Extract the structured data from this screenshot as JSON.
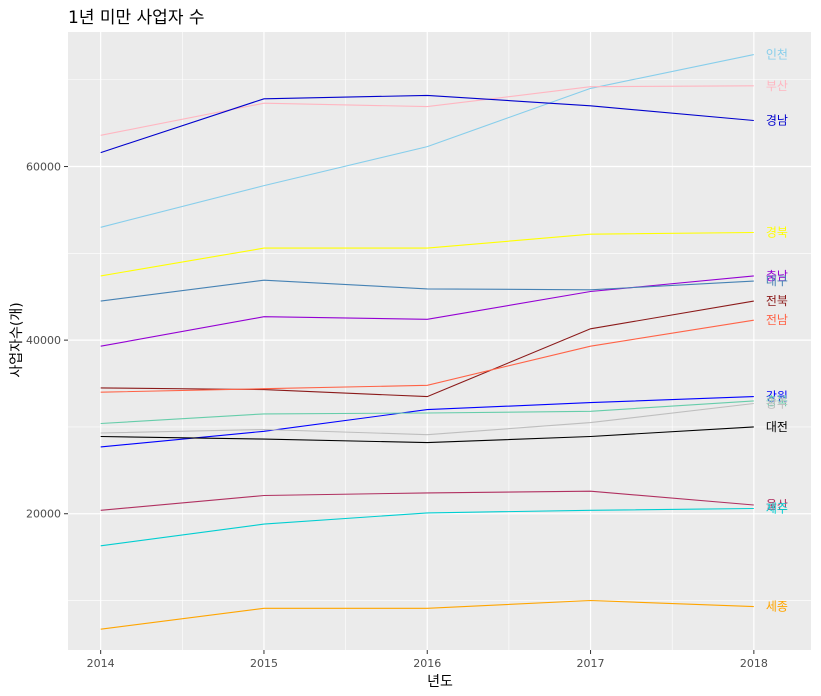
{
  "chart_data": {
    "type": "line",
    "title": "1년 미만 사업자 수",
    "xlabel": "년도",
    "ylabel": "사업자수(개)",
    "x": [
      2014,
      2015,
      2016,
      2017,
      2018
    ],
    "x_ticks": [
      "2014",
      "2015",
      "2016",
      "2017",
      "2018"
    ],
    "y_ticks": [
      "20000",
      "40000",
      "60000"
    ],
    "y_tick_values": [
      20000,
      40000,
      60000
    ],
    "xlim": [
      2013.8,
      2018.35
    ],
    "ylim": [
      4300,
      75500
    ],
    "grid": true,
    "legend": "labels at line ends",
    "series": [
      {
        "name": "인천",
        "color": "#87CEEB",
        "values": [
          53000,
          57800,
          62300,
          69000,
          72900
        ]
      },
      {
        "name": "부산",
        "color": "#FFB6C1",
        "values": [
          63600,
          67300,
          66900,
          69200,
          69300
        ]
      },
      {
        "name": "경남",
        "color": "#0000CD",
        "values": [
          61600,
          67800,
          68200,
          67000,
          65300
        ]
      },
      {
        "name": "경북",
        "color": "#FFFF00",
        "values": [
          47400,
          50600,
          50600,
          52200,
          52400
        ]
      },
      {
        "name": "충남",
        "color": "#9400D3",
        "values": [
          39300,
          42700,
          42400,
          45600,
          47400
        ]
      },
      {
        "name": "대구",
        "color": "#4682B4",
        "values": [
          44500,
          46900,
          45900,
          45800,
          46800
        ]
      },
      {
        "name": "전북",
        "color": "#8B1A1A",
        "values": [
          34500,
          34300,
          33500,
          41300,
          44500
        ]
      },
      {
        "name": "전남",
        "color": "#FF6347",
        "values": [
          34000,
          34400,
          34800,
          39300,
          42300
        ]
      },
      {
        "name": "강원",
        "color": "#0000FF",
        "values": [
          27700,
          29500,
          32000,
          32800,
          33500
        ]
      },
      {
        "name": "충북",
        "color": "#66CDAA",
        "values": [
          30400,
          31500,
          31600,
          31800,
          33000
        ]
      },
      {
        "name": "광주",
        "color": "#BEBEBE",
        "values": [
          29300,
          29700,
          29100,
          30500,
          32700
        ]
      },
      {
        "name": "대전",
        "color": "#000000",
        "values": [
          28900,
          28600,
          28200,
          28900,
          30000
        ]
      },
      {
        "name": "울산",
        "color": "#B03060",
        "values": [
          20400,
          22100,
          22400,
          22600,
          21000
        ]
      },
      {
        "name": "제주",
        "color": "#00CED1",
        "values": [
          16300,
          18800,
          20100,
          20400,
          20600
        ]
      },
      {
        "name": "세종",
        "color": "#FFA500",
        "values": [
          6700,
          9100,
          9100,
          10000,
          9300
        ]
      }
    ]
  }
}
